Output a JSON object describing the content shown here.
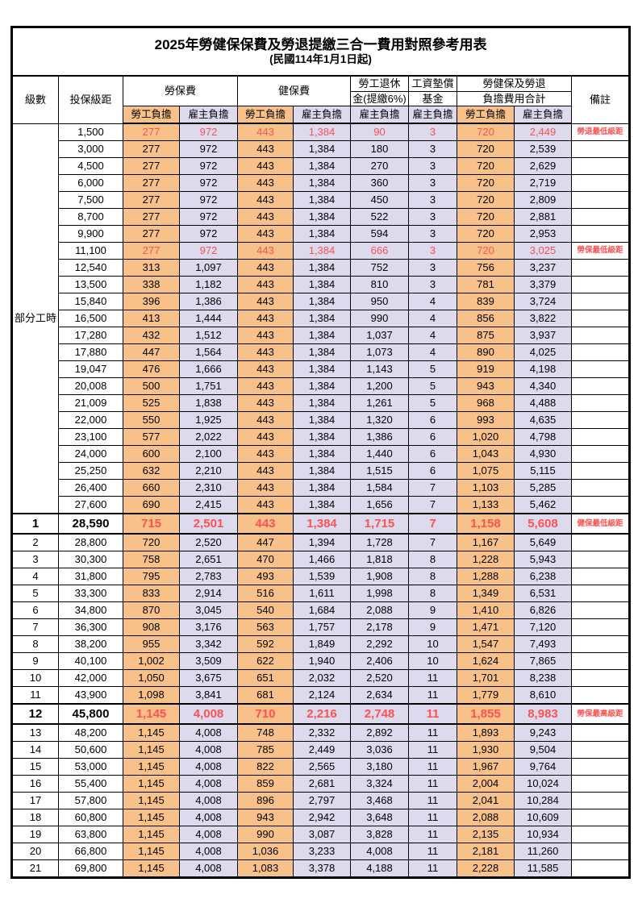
{
  "title": "2025年勞健保保費及勞退提繳三合一費用對照參考用表",
  "subtitle": "(民國114年1月1日起)",
  "colors": {
    "worker_column_bg": "#F7C189",
    "employer_column_bg": "#DDDAEE",
    "highlight_text": "#FB5252",
    "border": "#000000"
  },
  "header": {
    "level": "級數",
    "bracket": "投保級距",
    "labor_fee": "勞保費",
    "health_fee": "健保費",
    "pension_l1": "勞工退休",
    "pension_l2": "金(提繳6%)",
    "fund_l1": "工資墊償",
    "fund_l2": "基金",
    "total_l1": "勞健保及勞退",
    "total_l2": "負擔費用合計",
    "remark": "備註",
    "worker": "勞工負擔",
    "employer": "雇主負擔"
  },
  "part_time": {
    "label": "部分工時",
    "rowspan": 23
  },
  "rows": [
    {
      "level": "",
      "bracket": "1,500",
      "values": [
        "277",
        "972",
        "443",
        "1,384",
        "90",
        "3",
        "720",
        "2,449"
      ],
      "note": "勞退最低級距",
      "red": true
    },
    {
      "level": "",
      "bracket": "3,000",
      "values": [
        "277",
        "972",
        "443",
        "1,384",
        "180",
        "3",
        "720",
        "2,539"
      ]
    },
    {
      "level": "",
      "bracket": "4,500",
      "values": [
        "277",
        "972",
        "443",
        "1,384",
        "270",
        "3",
        "720",
        "2,629"
      ]
    },
    {
      "level": "",
      "bracket": "6,000",
      "values": [
        "277",
        "972",
        "443",
        "1,384",
        "360",
        "3",
        "720",
        "2,719"
      ]
    },
    {
      "level": "",
      "bracket": "7,500",
      "values": [
        "277",
        "972",
        "443",
        "1,384",
        "450",
        "3",
        "720",
        "2,809"
      ]
    },
    {
      "level": "",
      "bracket": "8,700",
      "values": [
        "277",
        "972",
        "443",
        "1,384",
        "522",
        "3",
        "720",
        "2,881"
      ]
    },
    {
      "level": "",
      "bracket": "9,900",
      "values": [
        "277",
        "972",
        "443",
        "1,384",
        "594",
        "3",
        "720",
        "2,953"
      ]
    },
    {
      "level": "",
      "bracket": "11,100",
      "values": [
        "277",
        "972",
        "443",
        "1,384",
        "666",
        "3",
        "720",
        "3,025"
      ],
      "note": "勞保最低級距",
      "red": true
    },
    {
      "level": "",
      "bracket": "12,540",
      "values": [
        "313",
        "1,097",
        "443",
        "1,384",
        "752",
        "3",
        "756",
        "3,237"
      ]
    },
    {
      "level": "",
      "bracket": "13,500",
      "values": [
        "338",
        "1,182",
        "443",
        "1,384",
        "810",
        "3",
        "781",
        "3,379"
      ]
    },
    {
      "level": "",
      "bracket": "15,840",
      "values": [
        "396",
        "1,386",
        "443",
        "1,384",
        "950",
        "4",
        "839",
        "3,724"
      ]
    },
    {
      "level": "",
      "bracket": "16,500",
      "values": [
        "413",
        "1,444",
        "443",
        "1,384",
        "990",
        "4",
        "856",
        "3,822"
      ]
    },
    {
      "level": "",
      "bracket": "17,280",
      "values": [
        "432",
        "1,512",
        "443",
        "1,384",
        "1,037",
        "4",
        "875",
        "3,937"
      ]
    },
    {
      "level": "",
      "bracket": "17,880",
      "values": [
        "447",
        "1,564",
        "443",
        "1,384",
        "1,073",
        "4",
        "890",
        "4,025"
      ]
    },
    {
      "level": "",
      "bracket": "19,047",
      "values": [
        "476",
        "1,666",
        "443",
        "1,384",
        "1,143",
        "5",
        "919",
        "4,198"
      ]
    },
    {
      "level": "",
      "bracket": "20,008",
      "values": [
        "500",
        "1,751",
        "443",
        "1,384",
        "1,200",
        "5",
        "943",
        "4,340"
      ]
    },
    {
      "level": "",
      "bracket": "21,009",
      "values": [
        "525",
        "1,838",
        "443",
        "1,384",
        "1,261",
        "5",
        "968",
        "4,488"
      ]
    },
    {
      "level": "",
      "bracket": "22,000",
      "values": [
        "550",
        "1,925",
        "443",
        "1,384",
        "1,320",
        "6",
        "993",
        "4,635"
      ]
    },
    {
      "level": "",
      "bracket": "23,100",
      "values": [
        "577",
        "2,022",
        "443",
        "1,384",
        "1,386",
        "6",
        "1,020",
        "4,798"
      ]
    },
    {
      "level": "",
      "bracket": "24,000",
      "values": [
        "600",
        "2,100",
        "443",
        "1,384",
        "1,440",
        "6",
        "1,043",
        "4,930"
      ]
    },
    {
      "level": "",
      "bracket": "25,250",
      "values": [
        "632",
        "2,210",
        "443",
        "1,384",
        "1,515",
        "6",
        "1,075",
        "5,115"
      ]
    },
    {
      "level": "",
      "bracket": "26,400",
      "values": [
        "660",
        "2,310",
        "443",
        "1,384",
        "1,584",
        "7",
        "1,103",
        "5,285"
      ]
    },
    {
      "level": "",
      "bracket": "27,600",
      "values": [
        "690",
        "2,415",
        "443",
        "1,384",
        "1,656",
        "7",
        "1,133",
        "5,462"
      ]
    },
    {
      "level": "1",
      "bracket": "28,590",
      "values": [
        "715",
        "2,501",
        "443",
        "1,384",
        "1,715",
        "7",
        "1,158",
        "5,608"
      ],
      "note": "健保最低級距",
      "red": true,
      "emph": true
    },
    {
      "level": "2",
      "bracket": "28,800",
      "values": [
        "720",
        "2,520",
        "447",
        "1,394",
        "1,728",
        "7",
        "1,167",
        "5,649"
      ]
    },
    {
      "level": "3",
      "bracket": "30,300",
      "values": [
        "758",
        "2,651",
        "470",
        "1,466",
        "1,818",
        "8",
        "1,228",
        "5,943"
      ]
    },
    {
      "level": "4",
      "bracket": "31,800",
      "values": [
        "795",
        "2,783",
        "493",
        "1,539",
        "1,908",
        "8",
        "1,288",
        "6,238"
      ]
    },
    {
      "level": "5",
      "bracket": "33,300",
      "values": [
        "833",
        "2,914",
        "516",
        "1,611",
        "1,998",
        "8",
        "1,349",
        "6,531"
      ]
    },
    {
      "level": "6",
      "bracket": "34,800",
      "values": [
        "870",
        "3,045",
        "540",
        "1,684",
        "2,088",
        "9",
        "1,410",
        "6,826"
      ]
    },
    {
      "level": "7",
      "bracket": "36,300",
      "values": [
        "908",
        "3,176",
        "563",
        "1,757",
        "2,178",
        "9",
        "1,471",
        "7,120"
      ]
    },
    {
      "level": "8",
      "bracket": "38,200",
      "values": [
        "955",
        "3,342",
        "592",
        "1,849",
        "2,292",
        "10",
        "1,547",
        "7,493"
      ]
    },
    {
      "level": "9",
      "bracket": "40,100",
      "values": [
        "1,002",
        "3,509",
        "622",
        "1,940",
        "2,406",
        "10",
        "1,624",
        "7,865"
      ]
    },
    {
      "level": "10",
      "bracket": "42,000",
      "values": [
        "1,050",
        "3,675",
        "651",
        "2,032",
        "2,520",
        "11",
        "1,701",
        "8,238"
      ]
    },
    {
      "level": "11",
      "bracket": "43,900",
      "values": [
        "1,098",
        "3,841",
        "681",
        "2,124",
        "2,634",
        "11",
        "1,779",
        "8,610"
      ]
    },
    {
      "level": "12",
      "bracket": "45,800",
      "values": [
        "1,145",
        "4,008",
        "710",
        "2,216",
        "2,748",
        "11",
        "1,855",
        "8,983"
      ],
      "note": "勞保最高級距",
      "red": true,
      "emph": true
    },
    {
      "level": "13",
      "bracket": "48,200",
      "values": [
        "1,145",
        "4,008",
        "748",
        "2,332",
        "2,892",
        "11",
        "1,893",
        "9,243"
      ]
    },
    {
      "level": "14",
      "bracket": "50,600",
      "values": [
        "1,145",
        "4,008",
        "785",
        "2,449",
        "3,036",
        "11",
        "1,930",
        "9,504"
      ]
    },
    {
      "level": "15",
      "bracket": "53,000",
      "values": [
        "1,145",
        "4,008",
        "822",
        "2,565",
        "3,180",
        "11",
        "1,967",
        "9,764"
      ]
    },
    {
      "level": "16",
      "bracket": "55,400",
      "values": [
        "1,145",
        "4,008",
        "859",
        "2,681",
        "3,324",
        "11",
        "2,004",
        "10,024"
      ]
    },
    {
      "level": "17",
      "bracket": "57,800",
      "values": [
        "1,145",
        "4,008",
        "896",
        "2,797",
        "3,468",
        "11",
        "2,041",
        "10,284"
      ]
    },
    {
      "level": "18",
      "bracket": "60,800",
      "values": [
        "1,145",
        "4,008",
        "943",
        "2,942",
        "3,648",
        "11",
        "2,088",
        "10,609"
      ]
    },
    {
      "level": "19",
      "bracket": "63,800",
      "values": [
        "1,145",
        "4,008",
        "990",
        "3,087",
        "3,828",
        "11",
        "2,135",
        "10,934"
      ]
    },
    {
      "level": "20",
      "bracket": "66,800",
      "values": [
        "1,145",
        "4,008",
        "1,036",
        "3,233",
        "4,008",
        "11",
        "2,181",
        "11,260"
      ]
    },
    {
      "level": "21",
      "bracket": "69,800",
      "values": [
        "1,145",
        "4,008",
        "1,083",
        "3,378",
        "4,188",
        "11",
        "2,228",
        "11,585"
      ]
    }
  ]
}
